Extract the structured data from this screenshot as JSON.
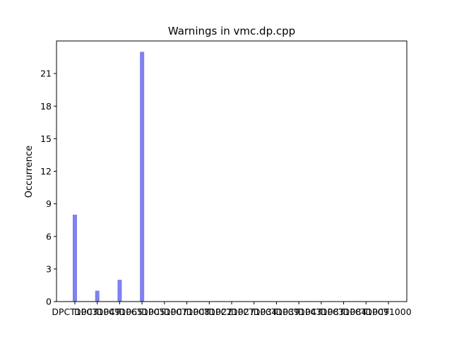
{
  "chart_data": {
    "type": "bar",
    "title": "Warnings in vmc.dp.cpp",
    "xlabel": "",
    "ylabel": "Occurrence",
    "categories": [
      "DPCT1003",
      "DPCT1049",
      "DPCT1065",
      "DPCT1005",
      "DPCT1007",
      "DPCT1008",
      "DPCT1022",
      "DPCT1027",
      "DPCT1034",
      "DPCT1039",
      "DPCT1043",
      "DPCT1083",
      "DPCT1084",
      "DPCT1009",
      "DPCT1000"
    ],
    "tick_labels": [
      "DPCT1003",
      "DPCT1049",
      "DPCT1065",
      "DPCT1005",
      "DPCT1007",
      "DPCT1008",
      "DPCT1022",
      "DPCT1027",
      "DPCT1034",
      "DPCT1039",
      "DPCT1043",
      "DPCT1083",
      "DPCT1084",
      "DPCT1009",
      "DPCT1000"
    ],
    "values": [
      8,
      1,
      2,
      23,
      0,
      0,
      0,
      0,
      0,
      0,
      0,
      0,
      0,
      0,
      0
    ],
    "ylim": [
      0,
      24
    ],
    "yticks": [
      0,
      3,
      6,
      9,
      12,
      15,
      18,
      21
    ],
    "bar_color": "#8080f0",
    "grid": false,
    "legend": "none"
  }
}
